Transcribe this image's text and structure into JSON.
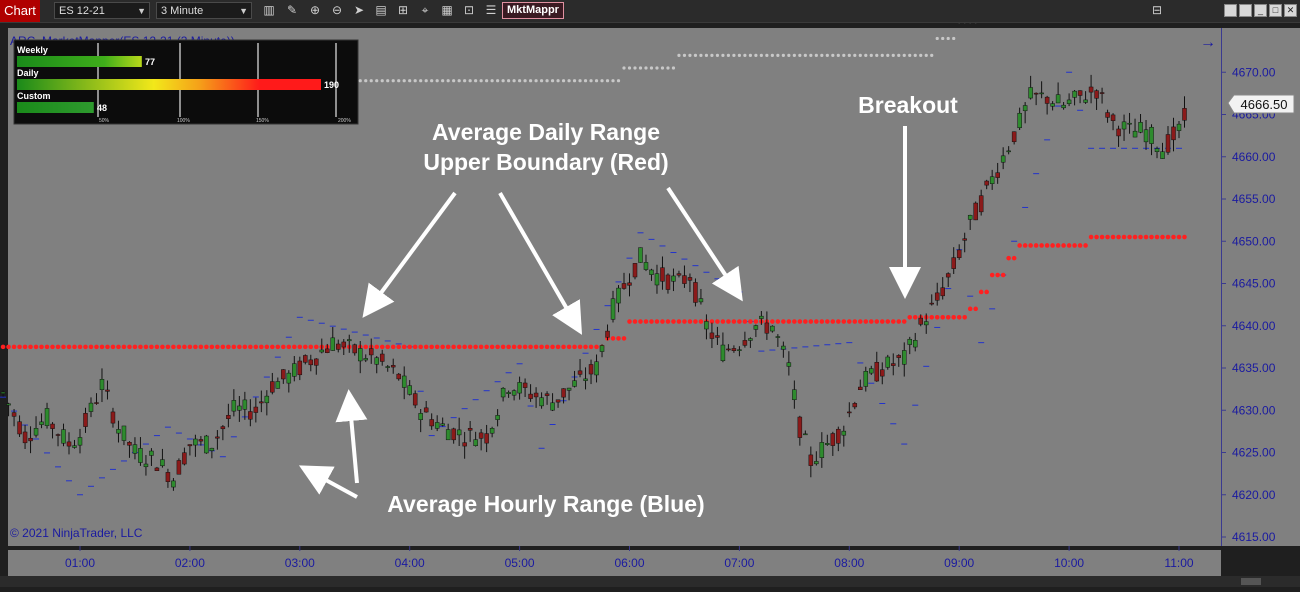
{
  "toolbar": {
    "tab": "Chart",
    "instrument": "ES 12-21",
    "interval": "3 Minute",
    "indicator_button": "MktMappr",
    "icons": [
      "bar-chart-icon",
      "pencil-icon",
      "zoom-in-icon",
      "zoom-out-icon",
      "pointer-icon",
      "document-icon",
      "template-icon",
      "crosshair-icon",
      "grid-icon",
      "properties-icon",
      "list-icon"
    ],
    "window_icons": [
      "restore-icon",
      "minimize-icon",
      "maximize-icon",
      "close-icon"
    ]
  },
  "chart": {
    "indicator_title": "ARC_MarketMapper(ES 12-21 (3 Minute))",
    "copyright": "© 2021 NinjaTrader, LLC",
    "current_price_label": "4666.50",
    "colors": {
      "background": "#808080",
      "up_candle": "#2e8b2e",
      "down_candle": "#8b1a1a",
      "hourly_range": "#2233cc",
      "daily_range": "#ff2020",
      "axis_text": "#1a1aa0"
    }
  },
  "range_panel": {
    "rows": [
      {
        "label": "Weekly",
        "value": "77",
        "pct": 0.39
      },
      {
        "label": "Daily",
        "value": "190",
        "pct": 0.95
      },
      {
        "label": "Custom",
        "value": "48",
        "pct": 0.24
      }
    ],
    "scale_labels": [
      "50%",
      "100%",
      "150%",
      "200%"
    ]
  },
  "annotations": {
    "daily_line1": "Average Daily Range",
    "daily_line2": "Upper Boundary (Red)",
    "hourly": "Average Hourly Range (Blue)",
    "breakout": "Breakout"
  },
  "chart_data": {
    "type": "candlestick",
    "ylim": [
      4615,
      4677
    ],
    "y_ticks": [
      4615,
      4620,
      4625,
      4630,
      4635,
      4640,
      4645,
      4650,
      4655,
      4660,
      4665,
      4670
    ],
    "y_tick_labels": [
      "4615.00",
      "4620.00",
      "4625.00",
      "4630.00",
      "4635.00",
      "4640.00",
      "4645.00",
      "4650.00",
      "4655.00",
      "4660.00",
      "4665.00",
      "4670.00"
    ],
    "x_tick_labels": [
      "01:00",
      "02:00",
      "03:00",
      "04:00",
      "05:00",
      "06:00",
      "07:00",
      "08:00",
      "09:00",
      "10:00",
      "11:00"
    ],
    "price_path": [
      [
        0.3,
        4632
      ],
      [
        0.5,
        4627
      ],
      [
        0.7,
        4629
      ],
      [
        0.9,
        4626
      ],
      [
        1.0,
        4627
      ],
      [
        1.2,
        4633
      ],
      [
        1.35,
        4628
      ],
      [
        1.5,
        4625
      ],
      [
        1.7,
        4624
      ],
      [
        1.85,
        4622
      ],
      [
        2.0,
        4626
      ],
      [
        2.2,
        4626
      ],
      [
        2.4,
        4630
      ],
      [
        2.6,
        4630
      ],
      [
        2.75,
        4633
      ],
      [
        2.9,
        4634
      ],
      [
        3.1,
        4636
      ],
      [
        3.3,
        4638
      ],
      [
        3.5,
        4637
      ],
      [
        3.7,
        4636
      ],
      [
        3.9,
        4634
      ],
      [
        4.1,
        4630
      ],
      [
        4.3,
        4628
      ],
      [
        4.5,
        4627
      ],
      [
        4.7,
        4627
      ],
      [
        4.9,
        4633
      ],
      [
        5.1,
        4632
      ],
      [
        5.3,
        4631
      ],
      [
        5.5,
        4633
      ],
      [
        5.7,
        4635
      ],
      [
        5.85,
        4642
      ],
      [
        6.0,
        4646
      ],
      [
        6.1,
        4648
      ],
      [
        6.25,
        4646
      ],
      [
        6.45,
        4645
      ],
      [
        6.55,
        4646
      ],
      [
        6.7,
        4640
      ],
      [
        6.85,
        4637
      ],
      [
        7.0,
        4638
      ],
      [
        7.15,
        4640
      ],
      [
        7.3,
        4640
      ],
      [
        7.45,
        4635
      ],
      [
        7.55,
        4628
      ],
      [
        7.65,
        4624
      ],
      [
        7.8,
        4626
      ],
      [
        7.95,
        4628
      ],
      [
        8.1,
        4633
      ],
      [
        8.3,
        4635
      ],
      [
        8.5,
        4636
      ],
      [
        8.65,
        4640
      ],
      [
        8.8,
        4643
      ],
      [
        8.95,
        4647
      ],
      [
        9.1,
        4652
      ],
      [
        9.25,
        4656
      ],
      [
        9.4,
        4660
      ],
      [
        9.55,
        4664
      ],
      [
        9.65,
        4667
      ],
      [
        9.8,
        4667
      ],
      [
        9.95,
        4666
      ],
      [
        10.1,
        4667
      ],
      [
        10.25,
        4668
      ],
      [
        10.4,
        4664
      ],
      [
        10.55,
        4663
      ],
      [
        10.7,
        4663
      ],
      [
        10.85,
        4661
      ],
      [
        11.0,
        4663
      ],
      [
        11.1,
        4666
      ]
    ],
    "series": [
      {
        "name": "Average Daily Range",
        "points": [
          [
            0.0,
            4637.5
          ],
          [
            5.75,
            4637.5
          ],
          [
            5.75,
            4638.5
          ],
          [
            5.95,
            4638.5
          ],
          [
            5.95,
            4640.5
          ],
          [
            8.5,
            4640.5
          ],
          [
            8.5,
            4641
          ],
          [
            9.05,
            4641
          ],
          [
            9.05,
            4642
          ],
          [
            9.15,
            4642
          ],
          [
            9.15,
            4644
          ],
          [
            9.25,
            4644
          ],
          [
            9.25,
            4646
          ],
          [
            9.4,
            4646
          ],
          [
            9.4,
            4648
          ],
          [
            9.55,
            4648
          ],
          [
            9.55,
            4649.5
          ],
          [
            10.2,
            4649.5
          ],
          [
            10.2,
            4650.5
          ],
          [
            11.1,
            4650.5
          ]
        ]
      },
      {
        "name": "Average Hourly Range",
        "points": [
          [
            0.0,
            4636.5
          ],
          [
            1.0,
            4620
          ],
          [
            1.8,
            4628
          ],
          [
            2.3,
            4624.5
          ],
          [
            3.0,
            4641
          ],
          [
            4.0,
            4637.5
          ],
          [
            4.2,
            4627
          ],
          [
            5.0,
            4635.5
          ],
          [
            5.2,
            4625.5
          ],
          [
            6.0,
            4648
          ],
          [
            6.1,
            4651
          ],
          [
            7.0,
            4644
          ],
          [
            7.2,
            4637
          ],
          [
            8.0,
            4638
          ],
          [
            8.5,
            4626
          ],
          [
            9.0,
            4649
          ],
          [
            9.2,
            4638
          ],
          [
            10.0,
            4670
          ],
          [
            10.2,
            4661
          ],
          [
            11.1,
            4661
          ]
        ]
      },
      {
        "name": "Weekly Range",
        "points": [
          [
            3.0,
            4669
          ],
          [
            5.9,
            4669
          ],
          [
            5.9,
            4670.5
          ],
          [
            6.4,
            4670.5
          ],
          [
            6.4,
            4672
          ],
          [
            8.75,
            4672
          ],
          [
            8.75,
            4674
          ],
          [
            8.95,
            4674
          ],
          [
            8.95,
            4676
          ],
          [
            9.15,
            4676
          ],
          [
            9.15,
            4677
          ]
        ]
      }
    ]
  }
}
